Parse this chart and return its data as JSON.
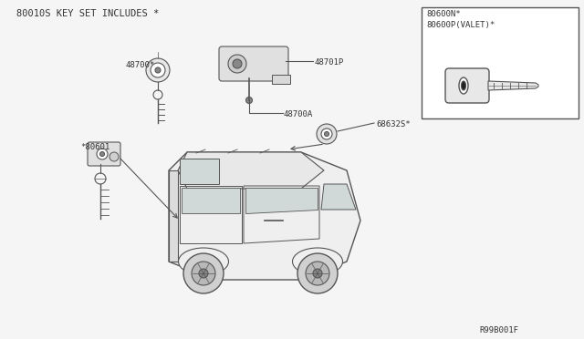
{
  "bg_color": "#f5f5f5",
  "line_color": "#555555",
  "title_text": "80010S KEY SET INCLUDES *",
  "label_48700": "48700*",
  "label_48701P": "48701P",
  "label_48700A": "48700A",
  "label_68632S": "68632S*",
  "label_80601": "*80601",
  "label_80600N": "80600N*",
  "label_80600P": "80600P(VALET)*",
  "footer": "R99B001F",
  "font_color": "#333333",
  "box_color": "#cccccc"
}
